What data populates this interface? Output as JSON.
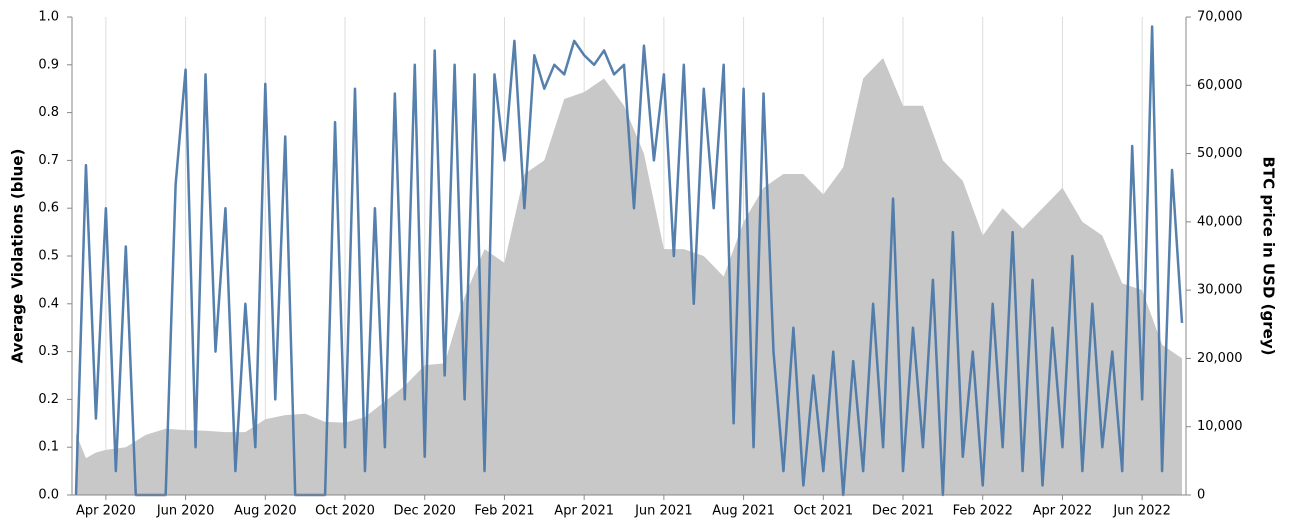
{
  "chart_data": {
    "type": "line",
    "ylabel": "Average Violations (blue)",
    "y2label": "BTC price in USD (grey)",
    "xlim": [
      0.15,
      28.1
    ],
    "xticks": [
      {
        "value": 1,
        "label": "Apr 2020"
      },
      {
        "value": 3,
        "label": "Jun 2020"
      },
      {
        "value": 5,
        "label": "Aug 2020"
      },
      {
        "value": 7,
        "label": "Oct 2020"
      },
      {
        "value": 9,
        "label": "Dec 2020"
      },
      {
        "value": 11,
        "label": "Feb 2021"
      },
      {
        "value": 13,
        "label": "Apr 2021"
      },
      {
        "value": 15,
        "label": "Jun 2021"
      },
      {
        "value": 17,
        "label": "Aug 2021"
      },
      {
        "value": 19,
        "label": "Oct 2021"
      },
      {
        "value": 21,
        "label": "Dec 2021"
      },
      {
        "value": 23,
        "label": "Feb 2022"
      },
      {
        "value": 25,
        "label": "Apr 2022"
      },
      {
        "value": 27,
        "label": "Jun 2022"
      }
    ],
    "ylim": [
      0,
      1
    ],
    "yticks": [
      {
        "value": 0,
        "label": "0.0"
      },
      {
        "value": 0.1,
        "label": "0.1"
      },
      {
        "value": 0.2,
        "label": "0.2"
      },
      {
        "value": 0.3,
        "label": "0.3"
      },
      {
        "value": 0.4,
        "label": "0.4"
      },
      {
        "value": 0.5,
        "label": "0.5"
      },
      {
        "value": 0.6,
        "label": "0.6"
      },
      {
        "value": 0.7,
        "label": "0.7"
      },
      {
        "value": 0.8,
        "label": "0.8"
      },
      {
        "value": 0.9,
        "label": "0.9"
      },
      {
        "value": 1,
        "label": "1.0"
      }
    ],
    "y2lim": [
      0,
      70000
    ],
    "y2ticks": [
      0,
      {
        "value": 10000,
        "label": "10,000"
      },
      {
        "value": 20000,
        "label": "20,000"
      },
      {
        "value": 30000,
        "label": "30,000"
      },
      {
        "value": 40000,
        "label": "40,000"
      },
      {
        "value": 50000,
        "label": "50,000"
      },
      {
        "value": 60000,
        "label": "60,000"
      },
      {
        "value": 70000,
        "label": "70,000"
      }
    ],
    "grid": true,
    "series": [
      {
        "type": "area",
        "axis": "y2",
        "color": "#c8c8c8",
        "x": [
          0.25,
          0.5,
          0.75,
          1,
          1.5,
          2,
          2.5,
          3,
          3.5,
          4,
          4.5,
          5,
          5.5,
          6,
          6.5,
          7,
          7.5,
          8,
          8.5,
          9,
          9.5,
          10,
          10.5,
          11,
          11.5,
          12,
          12.5,
          13,
          13.5,
          14,
          14.5,
          15,
          15.5,
          16,
          16.5,
          17,
          17.5,
          18,
          18.5,
          19,
          19.5,
          20,
          20.5,
          21,
          21.5,
          22,
          22.5,
          23,
          23.5,
          24,
          24.5,
          25,
          25.5,
          26,
          26.5,
          27,
          27.5,
          28
        ],
        "values": [
          9000,
          5400,
          6200,
          6600,
          7000,
          8800,
          9700,
          9500,
          9400,
          9200,
          9200,
          11100,
          11700,
          11900,
          10700,
          10600,
          11400,
          13700,
          16000,
          19000,
          19300,
          29000,
          36000,
          34000,
          47000,
          49000,
          58000,
          59000,
          61000,
          57000,
          50000,
          36000,
          36000,
          35000,
          32000,
          40000,
          45000,
          47000,
          47000,
          44000,
          48000,
          61000,
          64000,
          57000,
          57000,
          49000,
          46000,
          38000,
          42000,
          39000,
          42000,
          45000,
          40000,
          38000,
          31000,
          30000,
          22000,
          20000
        ]
      },
      {
        "type": "line",
        "color": "#4c78a8",
        "x": [
          0.25,
          0.5,
          0.75,
          1,
          1.25,
          1.5,
          1.75,
          2,
          2.25,
          2.5,
          2.75,
          3,
          3.25,
          3.5,
          3.75,
          4,
          4.25,
          4.5,
          4.75,
          5,
          5.25,
          5.5,
          5.75,
          6,
          6.25,
          6.5,
          6.75,
          7,
          7.25,
          7.5,
          7.75,
          8,
          8.25,
          8.5,
          8.75,
          9,
          9.25,
          9.5,
          9.75,
          10,
          10.25,
          10.5,
          10.75,
          11,
          11.25,
          11.5,
          11.75,
          12,
          12.25,
          12.5,
          12.75,
          13,
          13.25,
          13.5,
          13.75,
          14,
          14.25,
          14.5,
          14.75,
          15,
          15.25,
          15.5,
          15.75,
          16,
          16.25,
          16.5,
          16.75,
          17,
          17.25,
          17.5,
          17.75,
          18,
          18.25,
          18.5,
          18.75,
          19,
          19.25,
          19.5,
          19.75,
          20,
          20.25,
          20.5,
          20.75,
          21,
          21.25,
          21.5,
          21.75,
          22,
          22.25,
          22.5,
          22.75,
          23,
          23.25,
          23.5,
          23.75,
          24,
          24.25,
          24.5,
          24.75,
          25,
          25.25,
          25.5,
          25.75,
          26,
          26.25,
          26.5,
          26.75,
          27,
          27.25,
          27.5,
          27.75,
          28
        ],
        "values": [
          0.0,
          0.69,
          0.16,
          0.6,
          0.05,
          0.52,
          0.0,
          0.0,
          0.0,
          0.0,
          0.65,
          0.89,
          0.1,
          0.88,
          0.3,
          0.6,
          0.05,
          0.4,
          0.1,
          0.86,
          0.2,
          0.75,
          0.0,
          0.0,
          0.0,
          0.0,
          0.78,
          0.1,
          0.85,
          0.05,
          0.6,
          0.1,
          0.84,
          0.2,
          0.9,
          0.08,
          0.93,
          0.25,
          0.9,
          0.2,
          0.88,
          0.05,
          0.88,
          0.7,
          0.95,
          0.6,
          0.92,
          0.85,
          0.9,
          0.88,
          0.95,
          0.92,
          0.9,
          0.93,
          0.88,
          0.9,
          0.6,
          0.94,
          0.7,
          0.88,
          0.5,
          0.9,
          0.4,
          0.85,
          0.6,
          0.9,
          0.15,
          0.85,
          0.1,
          0.84,
          0.3,
          0.05,
          0.35,
          0.02,
          0.25,
          0.05,
          0.3,
          0.0,
          0.28,
          0.05,
          0.4,
          0.1,
          0.62,
          0.05,
          0.35,
          0.1,
          0.45,
          0.0,
          0.55,
          0.08,
          0.3,
          0.02,
          0.4,
          0.1,
          0.55,
          0.05,
          0.45,
          0.02,
          0.35,
          0.1,
          0.5,
          0.05,
          0.4,
          0.1,
          0.3,
          0.05,
          0.73,
          0.2,
          0.98,
          0.05,
          0.68,
          0.36
        ]
      }
    ]
  }
}
